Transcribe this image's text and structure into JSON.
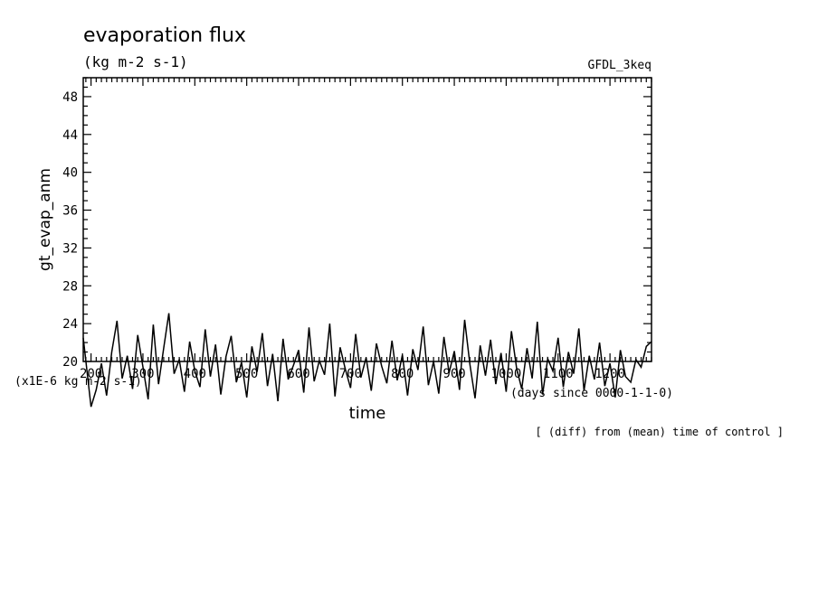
{
  "chart_data": {
    "type": "line",
    "title": "evaporation flux",
    "units_label": "(kg m-2 s-1)",
    "model_label": "GFDL_3keq",
    "ylabel": "gt_evap_anm",
    "xlabel": "time",
    "x_unit_label": "(days since 0000-1-1-0)",
    "y_scale_label": "(x1E-6 kg m-2 s-1)",
    "footnote": "[ (diff) from (mean) time of control ]",
    "xlim": [
      185,
      1280
    ],
    "ylim": [
      20,
      50
    ],
    "x_ticks": [
      "200",
      "300",
      "400",
      "500",
      "600",
      "700",
      "800",
      "900",
      "1000",
      "1100",
      "1200"
    ],
    "y_ticks": [
      "20",
      "24",
      "28",
      "32",
      "36",
      "40",
      "44",
      "48"
    ],
    "grid": false,
    "series": [
      {
        "x": [
          185,
          200,
          210,
          220,
          230,
          240,
          250,
          260,
          270,
          280,
          290,
          300,
          310,
          320,
          330,
          340,
          350,
          360,
          370,
          380,
          390,
          400,
          410,
          420,
          430,
          440,
          450,
          460,
          470,
          480,
          490,
          500,
          510,
          520,
          530,
          540,
          550,
          560,
          570,
          580,
          590,
          600,
          610,
          620,
          630,
          640,
          650,
          660,
          670,
          680,
          690,
          700,
          710,
          720,
          730,
          740,
          750,
          760,
          770,
          780,
          790,
          800,
          810,
          820,
          830,
          840,
          850,
          860,
          870,
          880,
          890,
          900,
          910,
          920,
          930,
          940,
          950,
          960,
          970,
          980,
          990,
          1000,
          1010,
          1020,
          1030,
          1040,
          1050,
          1060,
          1070,
          1080,
          1090,
          1100,
          1110,
          1120,
          1130,
          1140,
          1150,
          1160,
          1170,
          1180,
          1190,
          1200,
          1210,
          1220,
          1230,
          1240,
          1250,
          1260,
          1270,
          1280
        ],
        "y": [
          22.5,
          15.2,
          17.0,
          19.8,
          16.4,
          21.0,
          24.3,
          18.2,
          20.6,
          17.1,
          22.8,
          19.4,
          16.0,
          23.9,
          17.6,
          21.4,
          25.1,
          18.7,
          20.2,
          16.8,
          22.1,
          19.0,
          17.3,
          23.4,
          18.4,
          21.8,
          16.5,
          20.5,
          22.7,
          17.8,
          19.9,
          16.2,
          21.6,
          18.9,
          23.0,
          17.4,
          20.8,
          15.8,
          22.4,
          18.1,
          19.6,
          21.2,
          16.7,
          23.6,
          17.9,
          20.1,
          18.6,
          24.0,
          16.3,
          21.5,
          19.2,
          17.2,
          22.9,
          18.3,
          20.4,
          16.9,
          21.9,
          19.5,
          17.7,
          22.2,
          18.0,
          20.7,
          16.4,
          21.3,
          19.1,
          23.7,
          17.5,
          20.0,
          16.6,
          22.6,
          18.8,
          21.1,
          17.0,
          24.4,
          19.7,
          16.1,
          21.7,
          18.5,
          22.3,
          17.6,
          20.9,
          16.8,
          23.2,
          19.3,
          17.1,
          21.4,
          18.2,
          24.2,
          16.5,
          20.3,
          19.0,
          22.5,
          17.3,
          21.0,
          18.7,
          23.5,
          16.9,
          20.6,
          18.1,
          22.0,
          17.4,
          19.8,
          16.2,
          21.2,
          18.4,
          17.8,
          20.2,
          19.4,
          21.6,
          22.1
        ]
      }
    ]
  }
}
